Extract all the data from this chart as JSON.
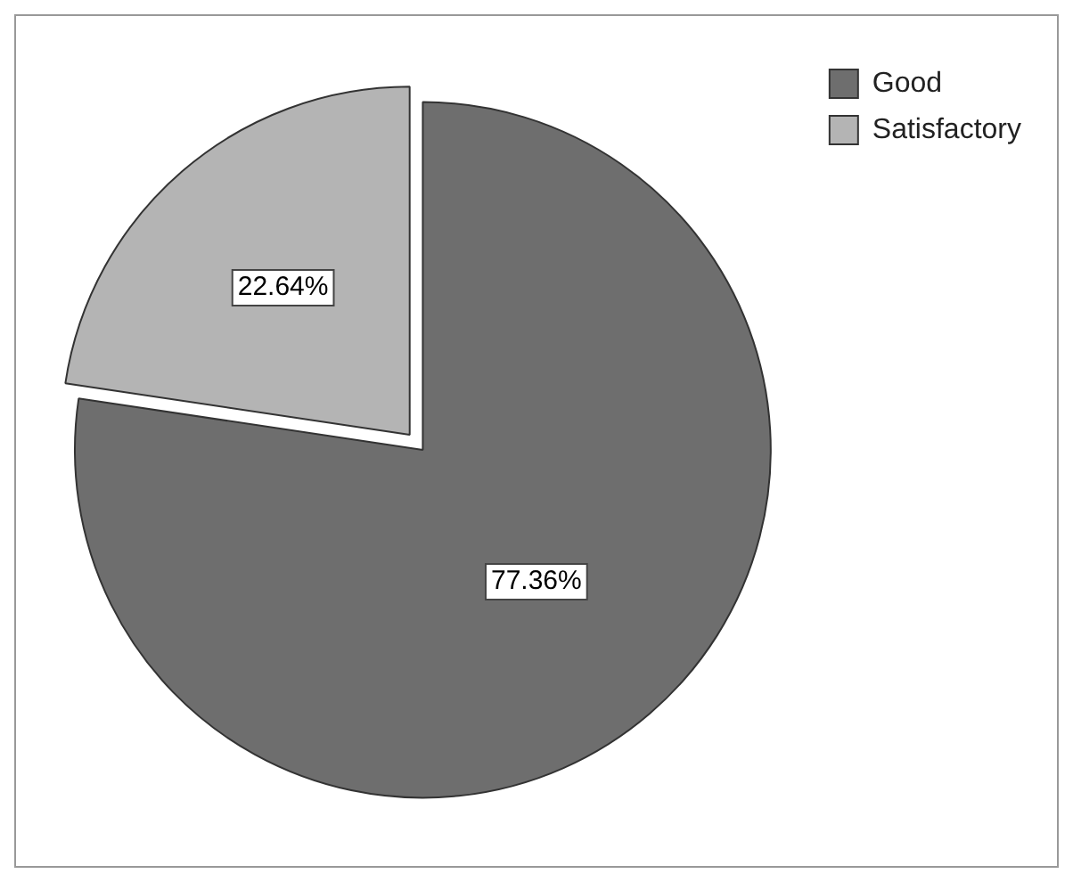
{
  "chart_data": {
    "type": "pie",
    "categories": [
      "Good",
      "Satisfactory"
    ],
    "values": [
      77.36,
      22.64
    ],
    "colors": [
      "#6e6e6e",
      "#b4b4b4"
    ],
    "value_labels": [
      "77.36%",
      "22.64%"
    ],
    "legend": "top right"
  }
}
